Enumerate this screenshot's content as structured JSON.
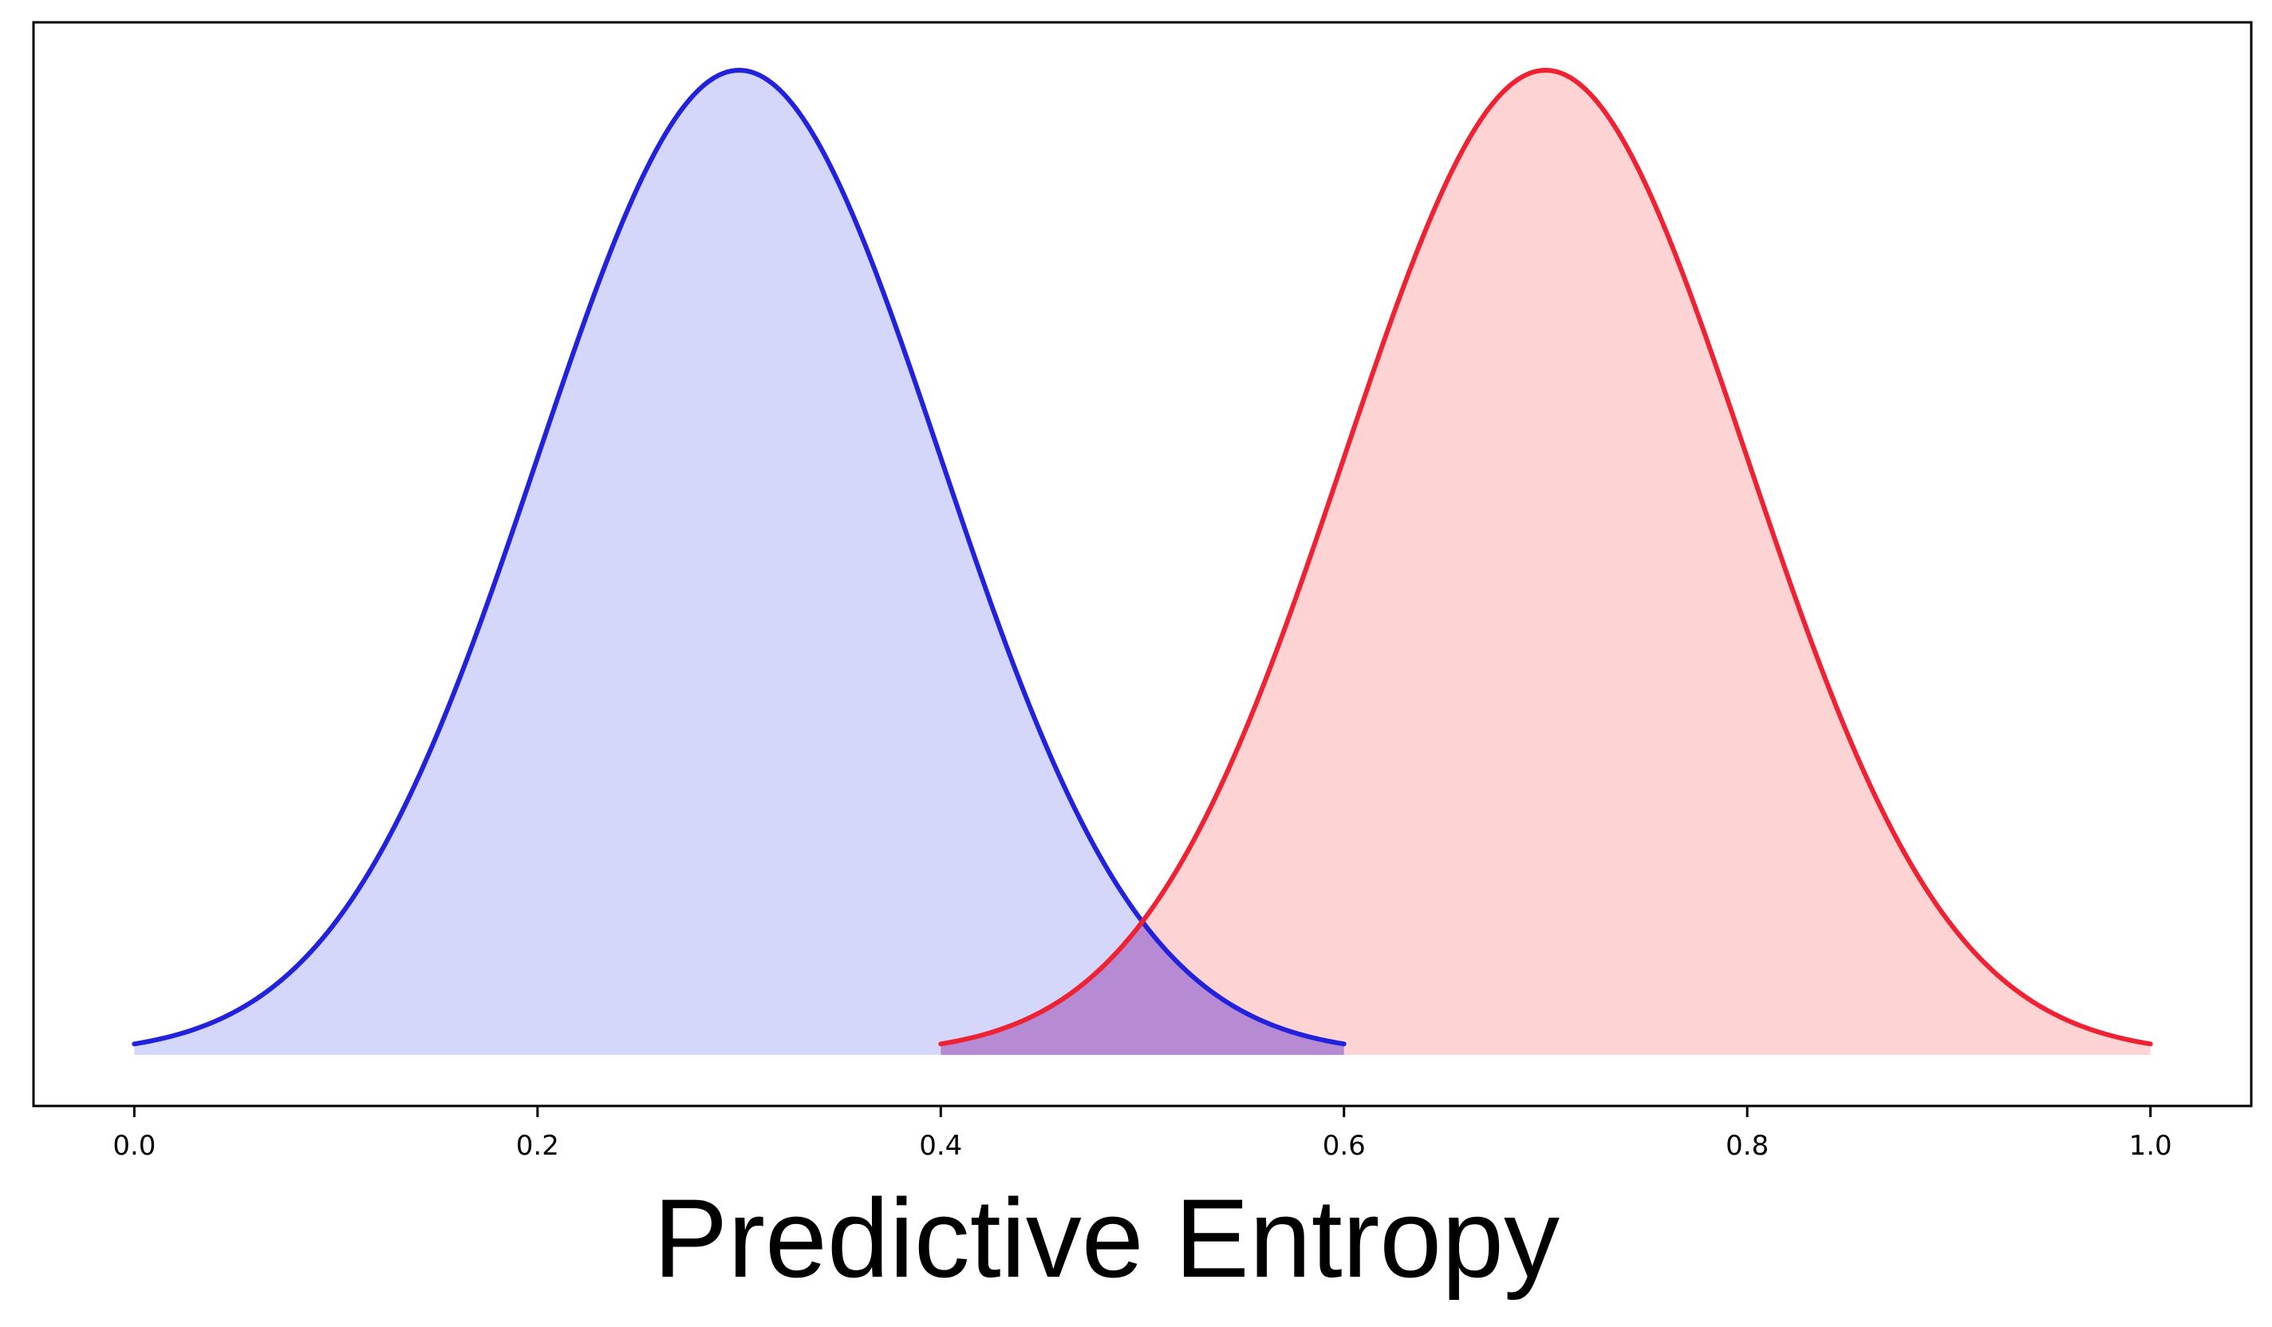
{
  "chart_data": {
    "type": "area",
    "title": "",
    "xlabel": "Predictive Entropy",
    "ylabel": "",
    "xlim": [
      -0.05,
      1.05
    ],
    "x_ticks": [
      0.0,
      0.2,
      0.4,
      0.6,
      0.8,
      1.0
    ],
    "x_tick_labels": [
      "0.0",
      "0.2",
      "0.4",
      "0.6",
      "0.8",
      "1.0"
    ],
    "y_ticks_shown": false,
    "grid": false,
    "legend": "none",
    "series": [
      {
        "kind": "normal density",
        "mean": 0.3,
        "sd": 0.1,
        "x_range": [
          0.0,
          0.6
        ],
        "line_color": "#2222dd",
        "fill_color": "#d4d6fa"
      },
      {
        "kind": "normal density",
        "mean": 0.7,
        "sd": 0.1,
        "x_range": [
          0.4,
          1.0
        ],
        "line_color": "#ee2233",
        "fill_color": "#fdd3d3"
      }
    ],
    "overlap_fill_color": "#b78ad4"
  }
}
